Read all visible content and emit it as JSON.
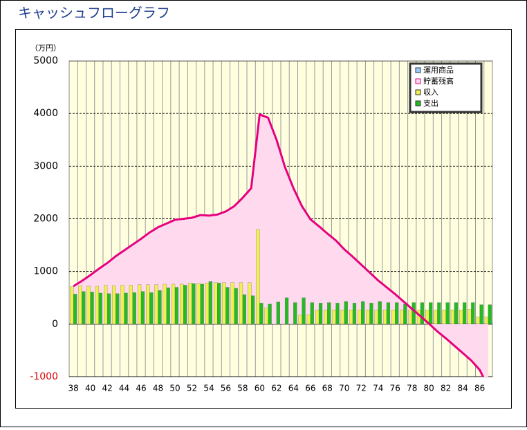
{
  "chart_data": {
    "type": "combo",
    "title": "キャッシュフローグラフ",
    "y_label": "（万円）",
    "categories": [
      "38",
      null,
      "40",
      null,
      "42",
      null,
      "44",
      null,
      "46",
      null,
      "48",
      null,
      "50",
      null,
      "52",
      null,
      "54",
      null,
      "56",
      null,
      "58",
      null,
      "60",
      null,
      "62",
      null,
      "64",
      null,
      "66",
      null,
      "68",
      null,
      "70",
      null,
      "72",
      null,
      "74",
      null,
      "76",
      null,
      "78",
      null,
      "80",
      null,
      "82",
      null,
      "84",
      null,
      "86",
      null
    ],
    "series": [
      {
        "name": "運用商品",
        "type": "bar",
        "color": "#99ccff",
        "values": [
          0,
          0,
          0,
          0,
          0,
          0,
          0,
          0,
          0,
          0,
          0,
          0,
          0,
          0,
          0,
          0,
          0,
          0,
          0,
          0,
          0,
          0,
          0,
          0,
          0,
          0,
          0,
          0,
          0,
          0,
          0,
          0,
          0,
          0,
          0,
          0,
          0,
          0,
          0,
          0,
          0,
          0,
          0,
          0,
          0,
          0,
          0,
          0,
          0,
          0
        ]
      },
      {
        "name": "貯蓄残高",
        "type": "area",
        "color": "#e6007e",
        "fill": "#ffd9ee",
        "values": [
          720,
          820,
          930,
          1050,
          1160,
          1290,
          1400,
          1510,
          1620,
          1740,
          1840,
          1910,
          1980,
          2000,
          2020,
          2070,
          2060,
          2080,
          2140,
          2240,
          2400,
          2580,
          3980,
          3920,
          3500,
          2980,
          2580,
          2240,
          1990,
          1860,
          1720,
          1590,
          1420,
          1280,
          1130,
          980,
          830,
          700,
          570,
          430,
          290,
          150,
          10,
          -140,
          -270,
          -410,
          -550,
          -690,
          -870,
          -1200
        ]
      },
      {
        "name": "収入",
        "type": "bar",
        "color": "#f0f050",
        "values": [
          710,
          730,
          720,
          720,
          740,
          730,
          740,
          740,
          750,
          750,
          750,
          760,
          760,
          760,
          780,
          770,
          780,
          790,
          790,
          790,
          790,
          790,
          1800,
          310,
          0,
          0,
          0,
          170,
          180,
          270,
          270,
          270,
          270,
          270,
          270,
          270,
          270,
          270,
          270,
          270,
          270,
          270,
          270,
          270,
          270,
          270,
          270,
          280,
          140,
          140
        ]
      },
      {
        "name": "支出",
        "type": "bar",
        "color": "#22bb22",
        "values": [
          570,
          620,
          610,
          590,
          580,
          580,
          590,
          600,
          620,
          600,
          640,
          690,
          700,
          740,
          770,
          760,
          810,
          780,
          700,
          680,
          560,
          540,
          400,
          380,
          420,
          500,
          410,
          500,
          410,
          400,
          410,
          400,
          430,
          400,
          430,
          400,
          430,
          410,
          410,
          380,
          410,
          410,
          410,
          410,
          410,
          410,
          410,
          410,
          370,
          370
        ]
      }
    ],
    "ylim": [
      -1000,
      5000
    ],
    "yticks": [
      -1000,
      0,
      1000,
      2000,
      3000,
      4000,
      5000
    ],
    "negative_tick_color": "#dd0000",
    "grid": true,
    "legend": "top-right"
  }
}
